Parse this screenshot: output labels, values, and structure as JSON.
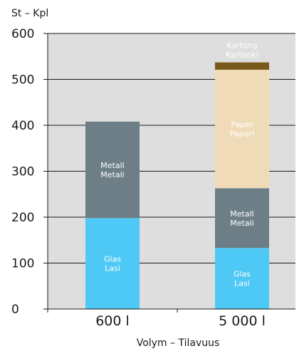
{
  "chart_data": {
    "type": "bar",
    "stacked": true,
    "ylabel": "St – Kpl",
    "xlabel": "Volym – Tilavuus",
    "ylim": [
      0,
      600
    ],
    "yticks": [
      0,
      100,
      200,
      300,
      400,
      500,
      600
    ],
    "ytick_labels": [
      "0",
      "100",
      "200",
      "300",
      "400",
      "500",
      "600"
    ],
    "categories": [
      "600 l",
      "5 000 l"
    ],
    "grid": true,
    "series": [
      {
        "name_lines": [
          "Glas",
          "Lasi"
        ],
        "color": "#4ec8f4",
        "label_color": "#ffffff",
        "values": [
          198,
          133
        ]
      },
      {
        "name_lines": [
          "Metall",
          "Metali"
        ],
        "color": "#6d7e86",
        "label_color": "#ffffff",
        "values": [
          210,
          130
        ]
      },
      {
        "name_lines": [
          "Paper",
          "Paperi"
        ],
        "color": "#f0dbb9",
        "label_color": "#2a2a2a",
        "values": [
          0,
          258
        ]
      },
      {
        "name_lines": [
          "Kartong",
          "Kartonki"
        ],
        "color": "#7a5a1c",
        "label_color": "#2a2a2a",
        "label_above": true,
        "values": [
          0,
          16
        ]
      }
    ]
  }
}
